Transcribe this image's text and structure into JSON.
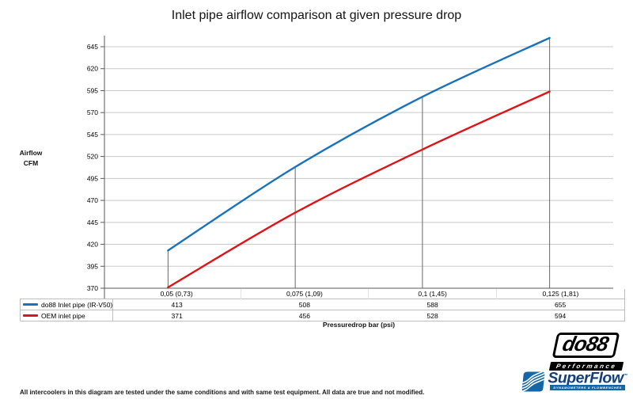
{
  "chart_data": {
    "type": "line",
    "title": "Inlet pipe airflow comparison at given pressure drop",
    "categories": [
      "0,05 (0,73)",
      "0,075 (1,09)",
      "0,1 (1,45)",
      "0,125 (1,81)"
    ],
    "series": [
      {
        "name": "do88 Inlet pipe (IR-V50)",
        "values": [
          413,
          508,
          588,
          655
        ],
        "color": "#1973bb"
      },
      {
        "name": "OEM inlet pipe",
        "values": [
          371,
          456,
          528,
          594
        ],
        "color": "#e01318"
      }
    ],
    "xlabel": "Pressuredrop bar (psi)",
    "ylabel": "Airflow CFM",
    "ylabel_lines": [
      "Airflow",
      "CFM"
    ],
    "ylim": [
      370,
      645
    ],
    "yticks": [
      370,
      395,
      420,
      445,
      470,
      495,
      520,
      545,
      570,
      595,
      620,
      645
    ],
    "grid": true,
    "droplines": true,
    "smooth_lines": true,
    "legend_position": "table-left"
  },
  "colors": {
    "gridline": "#c9c9c9",
    "axis": "#595959",
    "dropline": "#666666",
    "table_border": "#bfbfbf",
    "series_blue": "#1973bb",
    "series_red": "#e01318",
    "superflow_blue": "#1566a6",
    "superflow_text": "#133f7a",
    "logo_black": "#000000"
  },
  "footer": {
    "note": "All intercoolers in this diagram are tested under the same conditions and with same test equipment. All data are true and not modified."
  },
  "logos": {
    "do88": {
      "text": "do88",
      "tagline": "Performance"
    },
    "superflow": {
      "text": "SuperFlow",
      "tm": "™",
      "tagline": "DYNAMOMETERS & FLOWBENCHES"
    }
  }
}
